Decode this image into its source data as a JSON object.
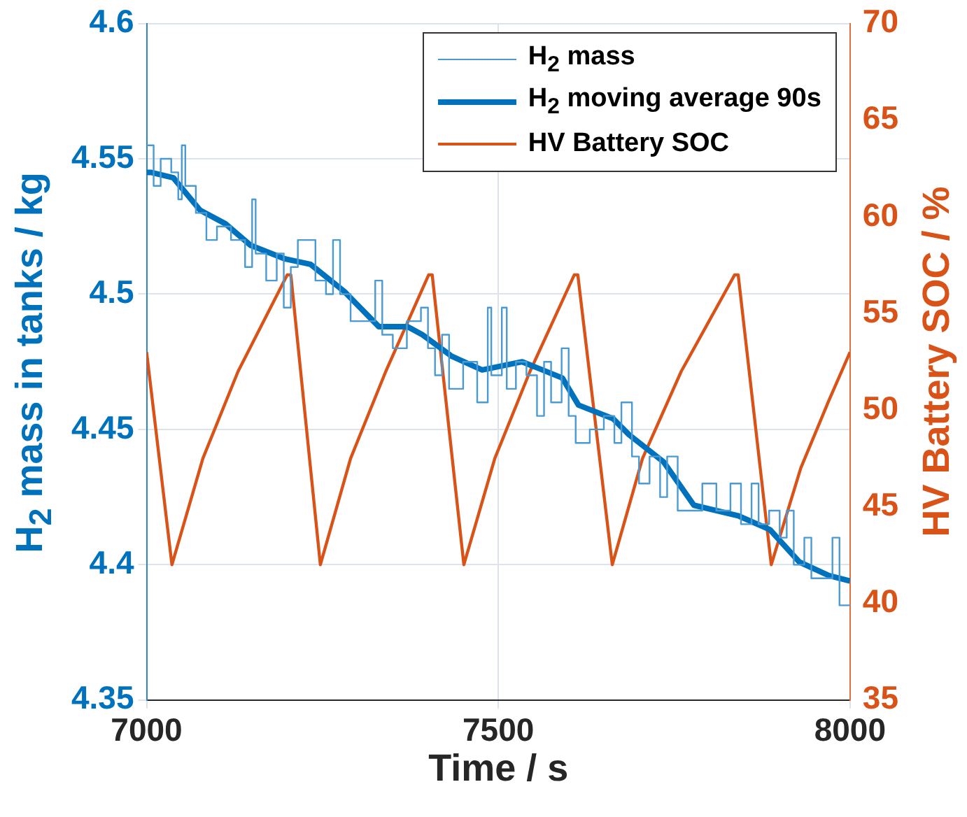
{
  "chart_data": {
    "type": "line",
    "xlabel": "Time / s",
    "ylabel": "H$_{2}$ mass in tanks / kg",
    "y2label": "HV Battery SOC / %",
    "xlim": [
      7000,
      8000
    ],
    "xticks": [
      7000,
      7500,
      8000
    ],
    "ylim": [
      4.35,
      4.6
    ],
    "yticks": [
      4.35,
      4.4,
      4.45,
      4.5,
      4.55,
      4.6
    ],
    "y2lim": [
      35,
      70
    ],
    "y2ticks": [
      35,
      40,
      45,
      50,
      55,
      60,
      65,
      70
    ],
    "grid": true,
    "legend": "top right",
    "marker": "none",
    "series": [
      {
        "name": "H$_{2}$ mass",
        "type": "step",
        "color": "#4a9ad4",
        "x": [
          7000,
          7010,
          7020,
          7035,
          7045,
          7050,
          7055,
          7070,
          7085,
          7100,
          7120,
          7140,
          7150,
          7155,
          7170,
          7185,
          7195,
          7205,
          7215,
          7235,
          7240,
          7255,
          7265,
          7275,
          7290,
          7310,
          7325,
          7335,
          7350,
          7370,
          7390,
          7400,
          7410,
          7420,
          7430,
          7450,
          7470,
          7485,
          7490,
          7505,
          7512,
          7525,
          7540,
          7555,
          7565,
          7575,
          7590,
          7600,
          7610,
          7630,
          7650,
          7665,
          7675,
          7690,
          7700,
          7715,
          7730,
          7740,
          7755,
          7775,
          7790,
          7810,
          7830,
          7845,
          7860,
          7870,
          7885,
          7900,
          7910,
          7920,
          7935,
          7945,
          7960,
          7975,
          7985,
          8000
        ],
        "values": [
          4.555,
          4.54,
          4.55,
          4.545,
          4.535,
          4.555,
          4.54,
          4.53,
          4.52,
          4.525,
          4.52,
          4.51,
          4.535,
          4.515,
          4.505,
          4.515,
          4.495,
          4.51,
          4.52,
          4.52,
          4.505,
          4.5,
          4.52,
          4.5,
          4.49,
          4.49,
          4.505,
          4.485,
          4.48,
          4.49,
          4.495,
          4.48,
          4.47,
          4.485,
          4.465,
          4.475,
          4.46,
          4.495,
          4.47,
          4.495,
          4.465,
          4.475,
          4.47,
          4.455,
          4.475,
          4.46,
          4.48,
          4.455,
          4.445,
          4.45,
          4.455,
          4.445,
          4.46,
          4.44,
          4.43,
          4.44,
          4.425,
          4.44,
          4.42,
          4.42,
          4.43,
          4.42,
          4.43,
          4.415,
          4.43,
          4.415,
          4.42,
          4.41,
          4.42,
          4.4,
          4.41,
          4.395,
          4.395,
          4.41,
          4.385,
          4.385
        ]
      },
      {
        "name": "H$_{2}$ moving average 90s",
        "type": "line",
        "color": "#0072bd",
        "x": [
          7000,
          7006,
          7038,
          7076,
          7112,
          7148,
          7197,
          7233,
          7281,
          7330,
          7371,
          7392,
          7434,
          7477,
          7534,
          7591,
          7614,
          7663,
          7686,
          7735,
          7778,
          7842,
          7886,
          7928,
          7970,
          8000
        ],
        "values": [
          4.545,
          4.545,
          4.543,
          4.531,
          4.526,
          4.518,
          4.513,
          4.511,
          4.501,
          4.488,
          4.488,
          4.485,
          4.477,
          4.472,
          4.475,
          4.469,
          4.459,
          4.454,
          4.448,
          4.438,
          4.422,
          4.418,
          4.413,
          4.401,
          4.396,
          4.394
        ]
      },
      {
        "name": "HV Battery SOC",
        "type": "line",
        "axis": "y2",
        "color": "#d95319",
        "x": [
          7000,
          7036,
          7080,
          7130,
          7200,
          7205,
          7247,
          7290,
          7340,
          7401,
          7406,
          7451,
          7495,
          7545,
          7608,
          7613,
          7662,
          7705,
          7760,
          7836,
          7841,
          7888,
          7930,
          7970,
          8000
        ],
        "values": [
          53,
          42,
          47.5,
          52,
          57,
          57,
          42,
          47.5,
          52,
          57,
          57,
          42,
          47.5,
          52,
          57,
          57,
          42,
          47.5,
          52,
          57,
          57,
          42,
          47,
          50.5,
          53
        ]
      }
    ]
  }
}
